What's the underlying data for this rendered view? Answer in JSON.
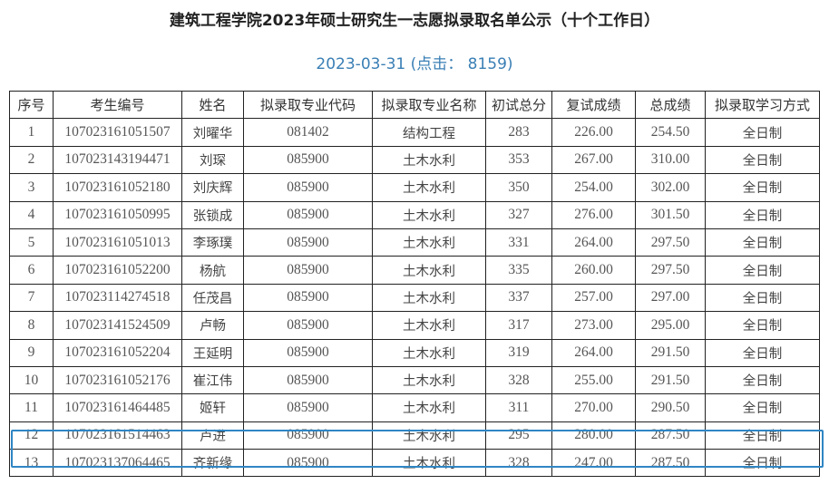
{
  "title": "建筑工程学院2023年硕士研究生一志愿拟录取名单公示（十个工作日）",
  "subtitle": "2023-03-31 (点击： 8159)",
  "table": {
    "headers": [
      "序号",
      "考生编号",
      "姓名",
      "拟录取专业代码",
      "拟录取专业名称",
      "初试总分",
      "复试成绩",
      "总成绩",
      "拟录取学习方式"
    ],
    "rows": [
      [
        "1",
        "107023161051507",
        "刘曜华",
        "081402",
        "结构工程",
        "283",
        "226.00",
        "254.50",
        "全日制"
      ],
      [
        "2",
        "107023143194471",
        "刘琛",
        "085900",
        "土木水利",
        "353",
        "267.00",
        "310.00",
        "全日制"
      ],
      [
        "3",
        "107023161052180",
        "刘庆辉",
        "085900",
        "土木水利",
        "350",
        "254.00",
        "302.00",
        "全日制"
      ],
      [
        "4",
        "107023161050995",
        "张锁成",
        "085900",
        "土木水利",
        "327",
        "276.00",
        "301.50",
        "全日制"
      ],
      [
        "5",
        "107023161051013",
        "李琢璞",
        "085900",
        "土木水利",
        "331",
        "264.00",
        "297.50",
        "全日制"
      ],
      [
        "6",
        "107023161052200",
        "杨航",
        "085900",
        "土木水利",
        "335",
        "260.00",
        "297.50",
        "全日制"
      ],
      [
        "7",
        "107023114274518",
        "任茂昌",
        "085900",
        "土木水利",
        "337",
        "257.00",
        "297.00",
        "全日制"
      ],
      [
        "8",
        "107023141524509",
        "卢畅",
        "085900",
        "土木水利",
        "317",
        "273.00",
        "295.00",
        "全日制"
      ],
      [
        "9",
        "107023161052204",
        "王延明",
        "085900",
        "土木水利",
        "319",
        "264.00",
        "291.50",
        "全日制"
      ],
      [
        "10",
        "107023161052176",
        "崔江伟",
        "085900",
        "土木水利",
        "328",
        "255.00",
        "291.50",
        "全日制"
      ],
      [
        "11",
        "107023161464485",
        "姬轩",
        "085900",
        "土木水利",
        "311",
        "270.00",
        "290.50",
        "全日制"
      ],
      [
        "12",
        "107023161514463",
        "卢进",
        "085900",
        "土木水利",
        "295",
        "280.00",
        "287.50",
        "全日制"
      ],
      [
        "13",
        "107023137064465",
        "齐新缘",
        "085900",
        "土木水利",
        "328",
        "247.00",
        "287.50",
        "全日制"
      ]
    ],
    "highlighted_row": "12",
    "highlight_color": "#2f86c4"
  }
}
